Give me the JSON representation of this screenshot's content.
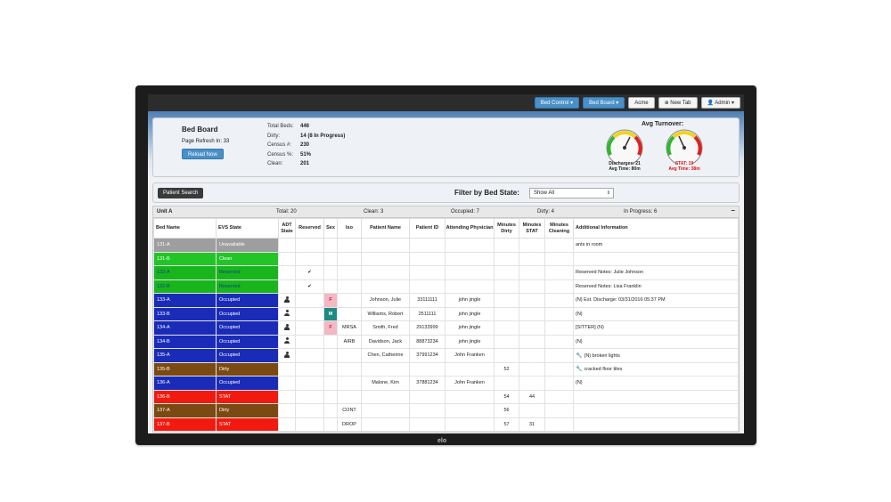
{
  "brand": "elo",
  "nav": {
    "bed_control": "Bed Control ▾",
    "bed_board": "Bed Board ▾",
    "acme": "Acme",
    "new_tab": "⊕ New Tab",
    "admin": "👤 Admin ▾"
  },
  "header": {
    "title": "Bed Board",
    "refresh": "Page Refresh In: 33",
    "reload": "Reload Now",
    "stats": [
      {
        "label": "Total Beds:",
        "value": "446"
      },
      {
        "label": "Dirty:",
        "value": "14 (8 In Progress)"
      },
      {
        "label": "Census #:",
        "value": "230"
      },
      {
        "label": "Census %:",
        "value": "51%"
      },
      {
        "label": "Clean:",
        "value": "201"
      }
    ],
    "turnover_title": "Avg Turnover:",
    "gauge1": {
      "line1": "Discharges: 21",
      "line2": "Avg Time: 80m",
      "color": "#111111"
    },
    "gauge2": {
      "line1": "STAT: 19",
      "line2": "Avg Time: 38m",
      "color": "#e01010"
    }
  },
  "filter": {
    "patient_search": "Patient Search",
    "label": "Filter by Bed State:",
    "selected": "Show All"
  },
  "unit": {
    "name": "Unit A",
    "total": "Total: 20",
    "clean": "Clean: 3",
    "occupied": "Occupied: 7",
    "dirty": "Dirty: 4",
    "in_progress": "In Progress: 6",
    "collapse": "–"
  },
  "columns": {
    "bed_name": "Bed Name",
    "evs_state": "EVS State",
    "adt_state": "ADT State",
    "reserved": "Reserved",
    "sex": "Sex",
    "iso": "Iso",
    "patient_name": "Patient Name",
    "patient_id": "Patient ID",
    "attending": "Attending Physician",
    "min_dirty": "Minutes Dirty",
    "min_stat": "Minutes STAT",
    "min_cleaning": "Minutes Cleaning",
    "additional": "Additional Information"
  },
  "rows": [
    {
      "bed": "131-A",
      "evs": "Unavailable",
      "adt": "",
      "reserved": "",
      "sex": "",
      "iso": "",
      "name": "",
      "pid": "",
      "phys": "",
      "dirty": "",
      "stat": "",
      "cleaning": "",
      "info": "ants in room",
      "wrench": false
    },
    {
      "bed": "131-B",
      "evs": "Clean",
      "adt": "",
      "reserved": "",
      "sex": "",
      "iso": "",
      "name": "",
      "pid": "",
      "phys": "",
      "dirty": "",
      "stat": "",
      "cleaning": "",
      "info": "",
      "wrench": false
    },
    {
      "bed": "132-A",
      "evs": "Reserved",
      "adt": "",
      "reserved": "✔",
      "sex": "",
      "iso": "",
      "name": "",
      "pid": "",
      "phys": "",
      "dirty": "",
      "stat": "",
      "cleaning": "",
      "info": "Reserved Notes: Julie Johnson",
      "wrench": false
    },
    {
      "bed": "132-B",
      "evs": "Reserved",
      "adt": "",
      "reserved": "✔",
      "sex": "",
      "iso": "",
      "name": "",
      "pid": "",
      "phys": "",
      "dirty": "",
      "stat": "",
      "cleaning": "",
      "info": "Reserved Notes: Lisa Franklin",
      "wrench": false
    },
    {
      "bed": "133-A",
      "evs": "Occupied",
      "adt": "person",
      "reserved": "",
      "sex": "F",
      "iso": "",
      "name": "Johnson, Julie",
      "pid": "33111111",
      "phys": "john jingle",
      "dirty": "",
      "stat": "",
      "cleaning": "",
      "info": "(N) Est. Discharge: 03/31/2016 05:37 PM",
      "wrench": false
    },
    {
      "bed": "133-B",
      "evs": "Occupied",
      "adt": "person",
      "reserved": "",
      "sex": "M",
      "iso": "",
      "name": "Williams, Robert",
      "pid": "2511111",
      "phys": "john jingle",
      "dirty": "",
      "stat": "",
      "cleaning": "",
      "info": "(N)",
      "wrench": false
    },
    {
      "bed": "134-A",
      "evs": "Occupied",
      "adt": "person",
      "reserved": "",
      "sex": "F",
      "iso": "MRSA",
      "name": "Smith, Fred",
      "pid": "29133999",
      "phys": "john jingle",
      "dirty": "",
      "stat": "",
      "cleaning": "",
      "info": "[SITTER] (N)",
      "wrench": false
    },
    {
      "bed": "134-B",
      "evs": "Occupied",
      "adt": "person",
      "reserved": "",
      "sex": "",
      "iso": "AIRB",
      "name": "Davidson, Jack",
      "pid": "88873234",
      "phys": "john jingle",
      "dirty": "",
      "stat": "",
      "cleaning": "",
      "info": "(N)",
      "wrench": false
    },
    {
      "bed": "135-A",
      "evs": "Occupied",
      "adt": "person",
      "reserved": "",
      "sex": "",
      "iso": "",
      "name": "Chen, Catherine",
      "pid": "37991234",
      "phys": "John Franken",
      "dirty": "",
      "stat": "",
      "cleaning": "",
      "info": "(N) broken lights",
      "wrench": true
    },
    {
      "bed": "135-B",
      "evs": "Dirty",
      "adt": "",
      "reserved": "",
      "sex": "",
      "iso": "",
      "name": "",
      "pid": "",
      "phys": "",
      "dirty": "52",
      "stat": "",
      "cleaning": "",
      "info": "cracked floor tiles",
      "wrench": true
    },
    {
      "bed": "136-A",
      "evs": "Occupied",
      "adt": "",
      "reserved": "",
      "sex": "",
      "iso": "",
      "name": "Malone, Kim",
      "pid": "37881234",
      "phys": "John Franken",
      "dirty": "",
      "stat": "",
      "cleaning": "",
      "info": "(N)",
      "wrench": false
    },
    {
      "bed": "136-B",
      "evs": "STAT",
      "adt": "",
      "reserved": "",
      "sex": "",
      "iso": "",
      "name": "",
      "pid": "",
      "phys": "",
      "dirty": "54",
      "stat": "44",
      "cleaning": "",
      "info": "",
      "wrench": false
    },
    {
      "bed": "137-A",
      "evs": "Dirty",
      "adt": "",
      "reserved": "",
      "sex": "",
      "iso": "CONT",
      "name": "",
      "pid": "",
      "phys": "",
      "dirty": "56",
      "stat": "",
      "cleaning": "",
      "info": "",
      "wrench": false
    },
    {
      "bed": "137-B",
      "evs": "STAT",
      "adt": "",
      "reserved": "",
      "sex": "",
      "iso": "DROP",
      "name": "",
      "pid": "",
      "phys": "",
      "dirty": "57",
      "stat": "31",
      "cleaning": "",
      "info": "",
      "wrench": false
    }
  ],
  "state_classes": {
    "Unavailable": "st-unavailable",
    "Clean": "st-clean",
    "Reserved": "st-reserved",
    "Occupied": "st-occupied",
    "Dirty": "st-dirty",
    "STAT": "st-stat"
  }
}
